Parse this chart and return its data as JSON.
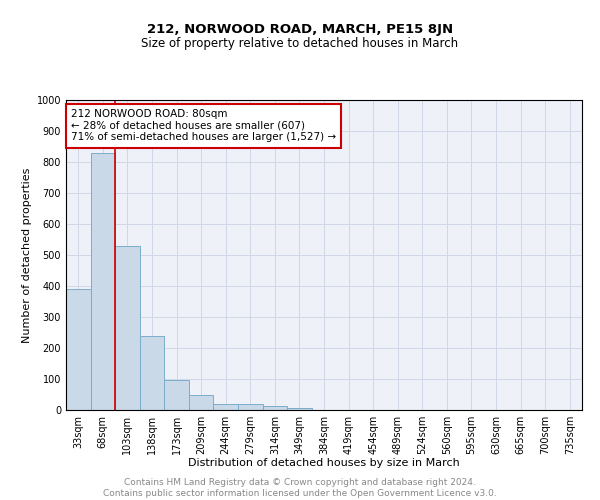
{
  "title": "212, NORWOOD ROAD, MARCH, PE15 8JN",
  "subtitle": "Size of property relative to detached houses in March",
  "xlabel": "Distribution of detached houses by size in March",
  "ylabel": "Number of detached properties",
  "bar_values": [
    390,
    830,
    530,
    240,
    97,
    50,
    20,
    18,
    13,
    8,
    0,
    0,
    0,
    0,
    0,
    0,
    0,
    0,
    0,
    0,
    0
  ],
  "bin_labels": [
    "33sqm",
    "68sqm",
    "103sqm",
    "138sqm",
    "173sqm",
    "209sqm",
    "244sqm",
    "279sqm",
    "314sqm",
    "349sqm",
    "384sqm",
    "419sqm",
    "454sqm",
    "489sqm",
    "524sqm",
    "560sqm",
    "595sqm",
    "630sqm",
    "665sqm",
    "700sqm",
    "735sqm"
  ],
  "bar_color": "#c9d9e8",
  "bar_edge_color": "#7aadcc",
  "grid_color": "#d0d8e8",
  "background_color": "#eef2f8",
  "vline_color": "#cc0000",
  "annotation_text": "212 NORWOOD ROAD: 80sqm\n← 28% of detached houses are smaller (607)\n71% of semi-detached houses are larger (1,527) →",
  "annotation_box_color": "#ffffff",
  "annotation_box_edgecolor": "#cc0000",
  "ylim": [
    0,
    1000
  ],
  "yticks": [
    0,
    100,
    200,
    300,
    400,
    500,
    600,
    700,
    800,
    900,
    1000
  ],
  "footer_text": "Contains HM Land Registry data © Crown copyright and database right 2024.\nContains public sector information licensed under the Open Government Licence v3.0.",
  "title_fontsize": 9.5,
  "subtitle_fontsize": 8.5,
  "axis_label_fontsize": 8,
  "tick_fontsize": 7,
  "annotation_fontsize": 7.5,
  "footer_fontsize": 6.5
}
